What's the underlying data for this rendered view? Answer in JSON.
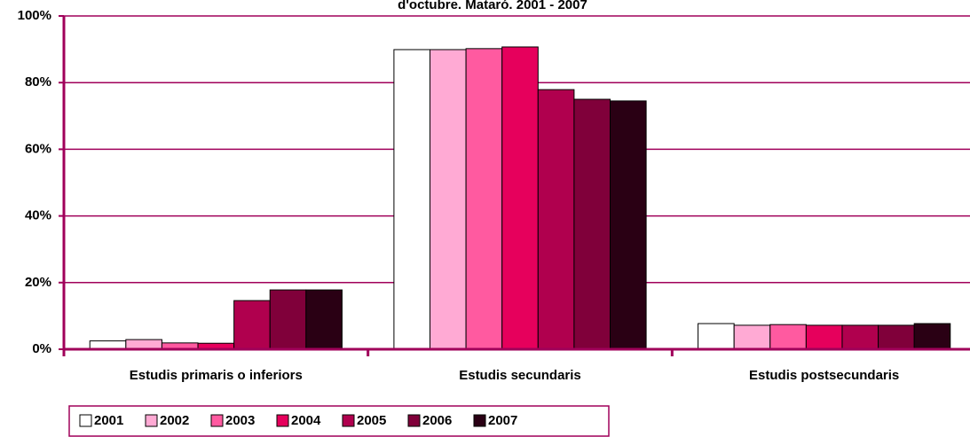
{
  "chart_data": {
    "type": "bar",
    "title": "d'octubre. Mataró. 2001 - 2007",
    "categories": [
      "Estudis primaris o inferiors",
      "Estudis secundaris",
      "Estudis postsecundaris"
    ],
    "series": [
      {
        "name": "2001",
        "color": "#ffffff",
        "values": [
          2.5,
          89.9,
          7.7
        ]
      },
      {
        "name": "2002",
        "color": "#ffaad4",
        "values": [
          2.9,
          89.9,
          7.2
        ]
      },
      {
        "name": "2003",
        "color": "#ff5aa0",
        "values": [
          1.9,
          90.2,
          7.4
        ]
      },
      {
        "name": "2004",
        "color": "#e6005c",
        "values": [
          1.8,
          90.7,
          7.2
        ]
      },
      {
        "name": "2005",
        "color": "#b0004e",
        "values": [
          14.6,
          77.9,
          7.2
        ]
      },
      {
        "name": "2006",
        "color": "#80003a",
        "values": [
          17.8,
          75.0,
          7.2
        ]
      },
      {
        "name": "2007",
        "color": "#2a0014",
        "values": [
          17.8,
          74.5,
          7.7
        ]
      }
    ],
    "ylim": [
      0,
      100
    ],
    "yticks": [
      {
        "value": 0,
        "label": "0%"
      },
      {
        "value": 20,
        "label": "20%"
      },
      {
        "value": 40,
        "label": "40%"
      },
      {
        "value": 60,
        "label": "60%"
      },
      {
        "value": 80,
        "label": "80%"
      },
      {
        "value": 100,
        "label": "100%"
      }
    ],
    "grid": true
  }
}
